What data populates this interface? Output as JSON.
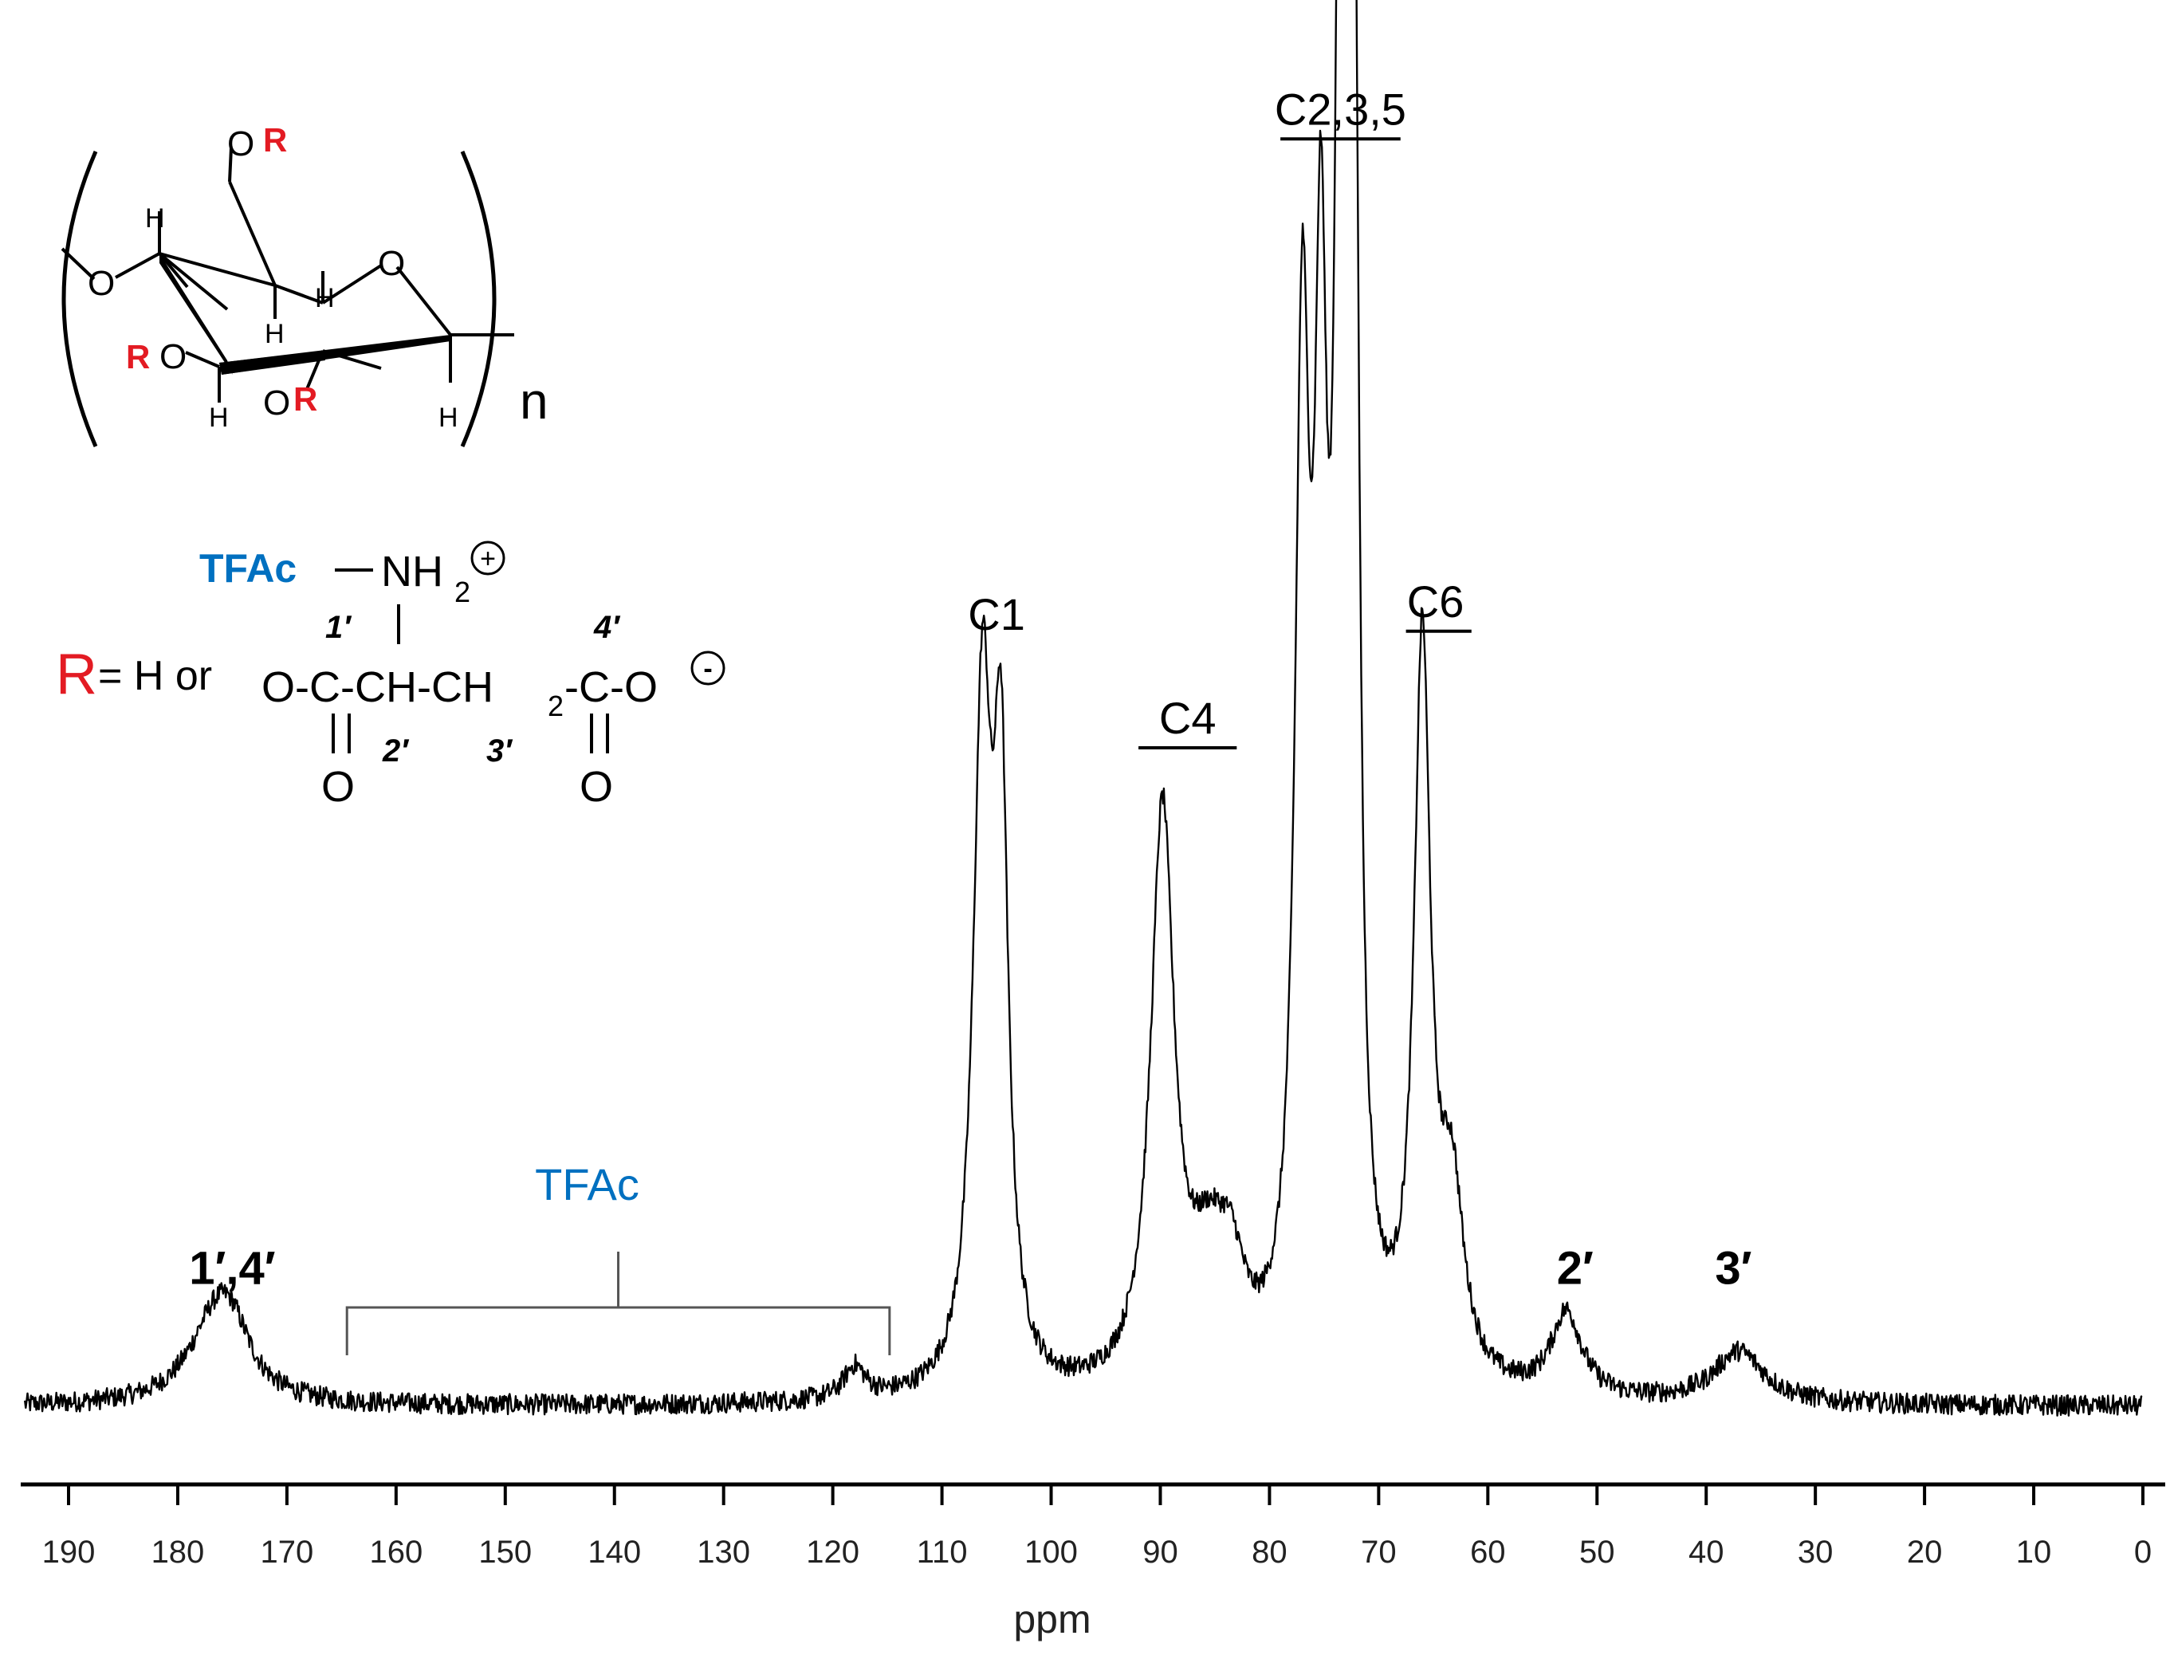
{
  "chart_data": {
    "type": "line",
    "title": "",
    "xlabel": "ppm",
    "ylabel": "",
    "x_reversed": true,
    "xlim": [
      194,
      0
    ],
    "ylim": [
      0,
      1.0
    ],
    "grid": false,
    "legend": "none",
    "x_ticks": [
      190,
      180,
      170,
      160,
      150,
      140,
      130,
      120,
      110,
      100,
      90,
      80,
      70,
      60,
      50,
      40,
      30,
      20,
      10,
      0
    ],
    "series": [
      {
        "name": "",
        "color": "#000000",
        "peaks": [
          {
            "center": 176.5,
            "height": 0.065,
            "width": 3.0
          },
          {
            "center": 175.0,
            "height": 0.03,
            "width": 2.0
          },
          {
            "center": 118.0,
            "height": 0.025,
            "width": 1.2
          },
          {
            "center": 106.3,
            "height": 0.52,
            "width": 1.0
          },
          {
            "center": 104.6,
            "height": 0.43,
            "width": 0.8
          },
          {
            "center": 89.8,
            "height": 0.44,
            "width": 1.3
          },
          {
            "center": 85.5,
            "height": 0.085,
            "width": 2.2
          },
          {
            "center": 83.5,
            "height": 0.06,
            "width": 1.5
          },
          {
            "center": 77.0,
            "height": 0.74,
            "width": 0.8
          },
          {
            "center": 75.3,
            "height": 0.69,
            "width": 0.7
          },
          {
            "center": 73.6,
            "height": 0.78,
            "width": 0.55
          },
          {
            "center": 72.9,
            "height": 0.82,
            "width": 0.6
          },
          {
            "center": 72.2,
            "height": 0.75,
            "width": 0.5
          },
          {
            "center": 66.0,
            "height": 0.56,
            "width": 0.9
          },
          {
            "center": 63.3,
            "height": 0.14,
            "width": 1.3
          },
          {
            "center": 52.8,
            "height": 0.065,
            "width": 1.7
          },
          {
            "center": 37.0,
            "height": 0.04,
            "width": 2.8
          }
        ]
      }
    ],
    "annotations": [
      {
        "text": "C1",
        "x": 105.0,
        "y": 0.6,
        "bold": false,
        "color": "#000000",
        "underline": false
      },
      {
        "text": "C4",
        "x": 87.5,
        "y": 0.52,
        "bold": false,
        "color": "#000000",
        "underline": true,
        "bar_from": 92.0,
        "bar_to": 83.0
      },
      {
        "text": "C2,3,5",
        "x": 73.5,
        "y": 0.99,
        "bold": false,
        "color": "#000000",
        "underline": true,
        "bar_from": 79.0,
        "bar_to": 68.0
      },
      {
        "text": "C6",
        "x": 64.8,
        "y": 0.61,
        "bold": false,
        "color": "#000000",
        "underline": true,
        "bar_from": 67.5,
        "bar_to": 61.5
      },
      {
        "text": "1′,4′",
        "x": 175.0,
        "y": 0.095,
        "bold": true,
        "color": "#000000",
        "underline": false
      },
      {
        "text": "2′",
        "x": 52.0,
        "y": 0.095,
        "bold": true,
        "color": "#000000",
        "underline": false
      },
      {
        "text": "3′",
        "x": 37.5,
        "y": 0.095,
        "bold": true,
        "color": "#000000",
        "underline": false
      },
      {
        "text": "TFAc",
        "x": 142.5,
        "y": 0.16,
        "bold": false,
        "color": "#0070c0",
        "underline": false,
        "bracket_from": 164.5,
        "bracket_to": 114.8
      }
    ]
  },
  "structure": {
    "n_label": "n",
    "r_label": "R",
    "o_label": "O",
    "h_label": "H",
    "r_def": {
      "r": "R",
      "eq_text": "= H or",
      "tfac": "TFAc",
      "nh2": "NH",
      "nh2_sub": "2",
      "plus": "+",
      "minus": "-",
      "lbl_1": "1′",
      "lbl_2": "2′",
      "lbl_3": "3′",
      "lbl_4": "4′",
      "chain_a": "O-C-CH-CH",
      "chain_sub": "2",
      "chain_b": "-C-O",
      "carbonyl_o": "O"
    }
  },
  "colors": {
    "red": "#e31b23",
    "blue": "#0070c0",
    "black": "#000000"
  }
}
